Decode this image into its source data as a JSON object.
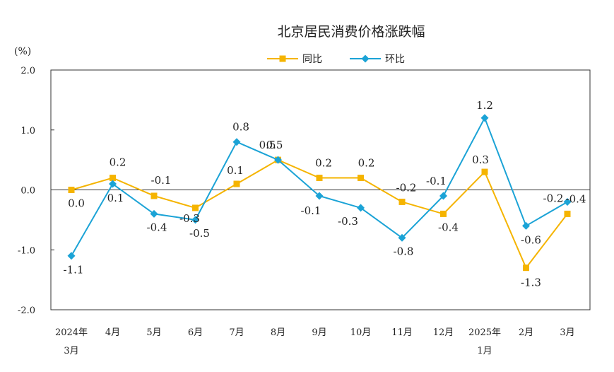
{
  "chart_data": {
    "type": "line",
    "title": "北京居民消费价格涨跌幅",
    "unit": "(%)",
    "ylim": [
      -2.0,
      2.0
    ],
    "yticks": [
      "2.0",
      "1.0",
      "0.0",
      "-1.0",
      "-2.0"
    ],
    "categories": [
      [
        "2024年",
        "3月"
      ],
      [
        "4月"
      ],
      [
        "5月"
      ],
      [
        "6月"
      ],
      [
        "7月"
      ],
      [
        "8月"
      ],
      [
        "9月"
      ],
      [
        "10月"
      ],
      [
        "11月"
      ],
      [
        "12月"
      ],
      [
        "2025年",
        "1月"
      ],
      [
        "2月"
      ],
      [
        "3月"
      ]
    ],
    "legend_position": "top-center",
    "grid": false,
    "series": [
      {
        "name": "同比",
        "color": "#f5b400",
        "marker": "square",
        "values": [
          0.0,
          0.2,
          -0.1,
          -0.3,
          0.1,
          0.5,
          0.2,
          0.2,
          -0.2,
          -0.4,
          0.3,
          -1.3,
          -0.4
        ],
        "labels": [
          "0.0",
          "0.2",
          "-0.1",
          "-0.3",
          "0.1",
          "0.5",
          "0.2",
          "0.2",
          "-0.2",
          "-0.4",
          "0.3",
          "-1.3",
          "-0.4"
        ]
      },
      {
        "name": "环比",
        "color": "#1ba3d6",
        "marker": "diamond",
        "values": [
          -1.1,
          0.1,
          -0.4,
          -0.5,
          0.8,
          0.5,
          -0.1,
          -0.3,
          -0.8,
          -0.1,
          1.2,
          -0.6,
          -0.2
        ],
        "labels": [
          "-1.1",
          "0.1",
          "-0.4",
          "-0.5",
          "0.8",
          "0.5",
          "-0.1",
          "-0.3",
          "-0.8",
          "-0.1",
          "1.2",
          "-0.6",
          "-0.2"
        ]
      }
    ]
  }
}
